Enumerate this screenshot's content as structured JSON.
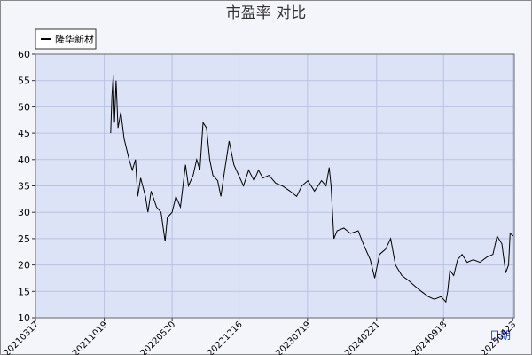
{
  "chart_data": {
    "type": "line",
    "title": "市盈率  对比",
    "x_label": "日期",
    "x": [
      "20211108",
      "20211112",
      "20211116",
      "20211120",
      "20211125",
      "20211201",
      "20211210",
      "20211220",
      "20220105",
      "20220115",
      "20220125",
      "20220201",
      "20220210",
      "20220225",
      "20220305",
      "20220315",
      "20220401",
      "20220415",
      "20220428",
      "20220505",
      "20220520",
      "20220601",
      "20220615",
      "20220701",
      "20220710",
      "20220725",
      "20220805",
      "20220815",
      "20220825",
      "20220905",
      "20220915",
      "20220925",
      "20221010",
      "20221020",
      "20221101",
      "20221115",
      "20221130",
      "20221215",
      "20221230",
      "20230115",
      "20230201",
      "20230215",
      "20230301",
      "20230320",
      "20230410",
      "20230501",
      "20230525",
      "20230615",
      "20230701",
      "20230720",
      "20230810",
      "20230901",
      "20230915",
      "20230925",
      "20231001",
      "20231010",
      "20231020",
      "20231110",
      "20231201",
      "20231225",
      "20240110",
      "20240201",
      "20240215",
      "20240301",
      "20240320",
      "20240405",
      "20240420",
      "20240510",
      "20240601",
      "20240620",
      "20240710",
      "20240801",
      "20240820",
      "20240910",
      "20240925",
      "20241001",
      "20241008",
      "20241020",
      "20241101",
      "20241115",
      "20241201",
      "20241220",
      "20250110",
      "20250201",
      "20250220",
      "20250305",
      "20250320",
      "20250401",
      "20250410",
      "20250415",
      "20250425"
    ],
    "series": [
      {
        "name": "隆华新材",
        "color": "#000000",
        "values": [
          45,
          52,
          56,
          47,
          55,
          46,
          49,
          44,
          40,
          38,
          40,
          33,
          36.5,
          33,
          30,
          34,
          31,
          30,
          24.5,
          29,
          30,
          33,
          31,
          39,
          35,
          37,
          40,
          38,
          47,
          46,
          40,
          37,
          36,
          33,
          38,
          43.5,
          39,
          37,
          35,
          38,
          36,
          38,
          36.5,
          37,
          35.5,
          35,
          34,
          33,
          35,
          36,
          34,
          36,
          35,
          38.5,
          35,
          25,
          26.5,
          27,
          26,
          26.5,
          24,
          21,
          17.5,
          22,
          23,
          25,
          20,
          18,
          17,
          16,
          15,
          14,
          13.5,
          14,
          13,
          15,
          19,
          18,
          21,
          22,
          20.5,
          21,
          20.5,
          21.5,
          22,
          25.5,
          24,
          18.5,
          20,
          26,
          25.5
        ]
      }
    ],
    "xlim": [
      "20210317",
      "20250428"
    ],
    "xticks": [
      "20210317",
      "20211019",
      "20220520",
      "20221216",
      "20230719",
      "20240221",
      "20240918",
      "20250423"
    ],
    "ylim": [
      10,
      60
    ],
    "yticks": [
      10,
      15,
      20,
      25,
      30,
      35,
      40,
      45,
      50,
      55,
      60
    ],
    "grid": true
  }
}
